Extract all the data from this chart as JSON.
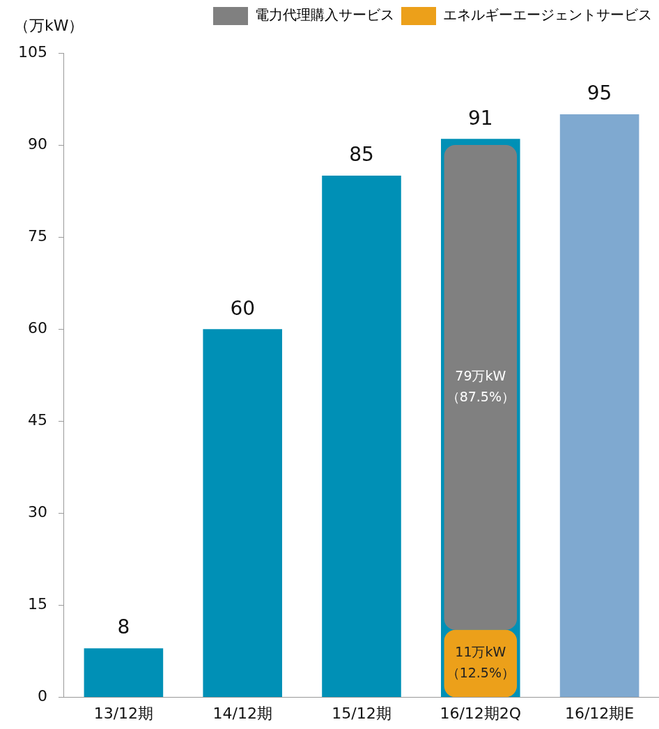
{
  "chart_data": {
    "type": "bar",
    "ylabel": "（万kW）",
    "categories": [
      "13/12期",
      "14/12期",
      "15/12期",
      "16/12期2Q",
      "16/12期E"
    ],
    "series": [
      {
        "color": "#0090b6",
        "colors": [
          "#0090b6",
          "#0090b6",
          "#0090b6",
          "#0090b6",
          "#7fa9d0"
        ],
        "values": [
          8,
          60,
          85,
          91,
          95
        ]
      },
      {
        "name": "エネルギーエージェントサービス",
        "color": "#eca01a",
        "values": [
          null,
          null,
          null,
          11,
          null
        ],
        "base": [
          null,
          null,
          null,
          0,
          null
        ],
        "value_labels": [
          null,
          null,
          null,
          "11万kW\n（12.5%）",
          null
        ]
      },
      {
        "name": "電力代理購入サービス",
        "color": "#808080",
        "values": [
          null,
          null,
          null,
          79,
          null
        ],
        "base": [
          null,
          null,
          null,
          11,
          null
        ],
        "value_labels": [
          null,
          null,
          null,
          "79万kW\n（87.5%）",
          null
        ]
      }
    ],
    "data_labels": true,
    "ylim": [
      0,
      105
    ],
    "yticks": [
      0,
      15,
      30,
      45,
      60,
      75,
      90,
      105
    ],
    "grid": false,
    "legend": "top right"
  }
}
